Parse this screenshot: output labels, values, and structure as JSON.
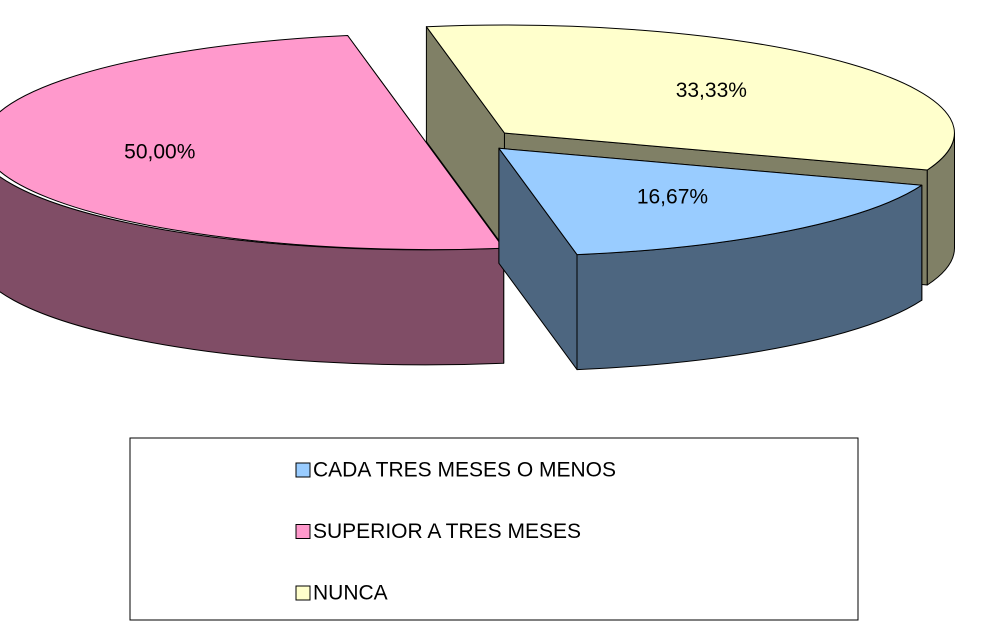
{
  "chart_data": {
    "type": "pie",
    "categories": [
      "CADA TRES MESES O MENOS",
      "SUPERIOR A TRES MESES",
      "NUNCA"
    ],
    "values": [
      16.67,
      50.0,
      33.33
    ],
    "value_labels": [
      "16,67%",
      "50,00%",
      "33,33%"
    ],
    "colors": [
      "#99ccff",
      "#ff99cc",
      "#ffffcc"
    ],
    "legend": "bottom"
  }
}
